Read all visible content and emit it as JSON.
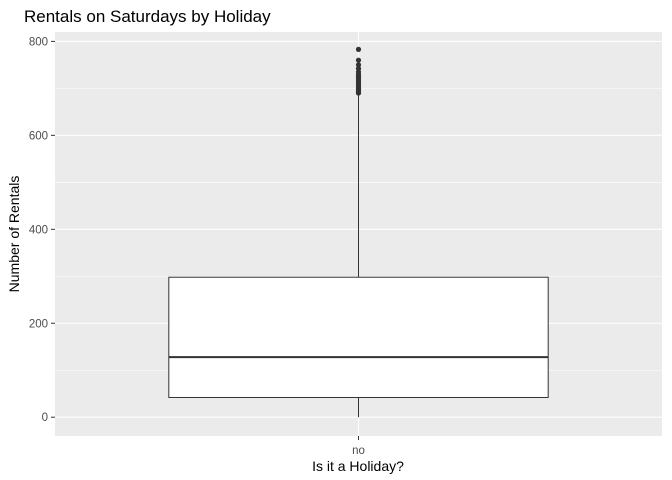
{
  "chart_data": {
    "type": "boxplot",
    "title": "Rentals on Saturdays by Holiday",
    "xlabel": "Is it a Holiday?",
    "ylabel": "Number of Rentals",
    "categories": [
      "no"
    ],
    "ylim": [
      -40,
      820
    ],
    "yticks": [
      0,
      200,
      400,
      600,
      800
    ],
    "boxes": [
      {
        "category": "no",
        "min": 0,
        "q1": 42,
        "median": 128,
        "q3": 298,
        "whisker_high": 686,
        "outliers": [
          690,
          693,
          697,
          700,
          703,
          706,
          710,
          714,
          718,
          722,
          726,
          730,
          735,
          742,
          750,
          760,
          783
        ]
      }
    ],
    "grid": true,
    "legend": "none",
    "colors": {
      "panel_background": "#ebebeb",
      "grid_major": "#ffffff",
      "box_fill": "#ffffff",
      "box_line": "#333333"
    }
  }
}
